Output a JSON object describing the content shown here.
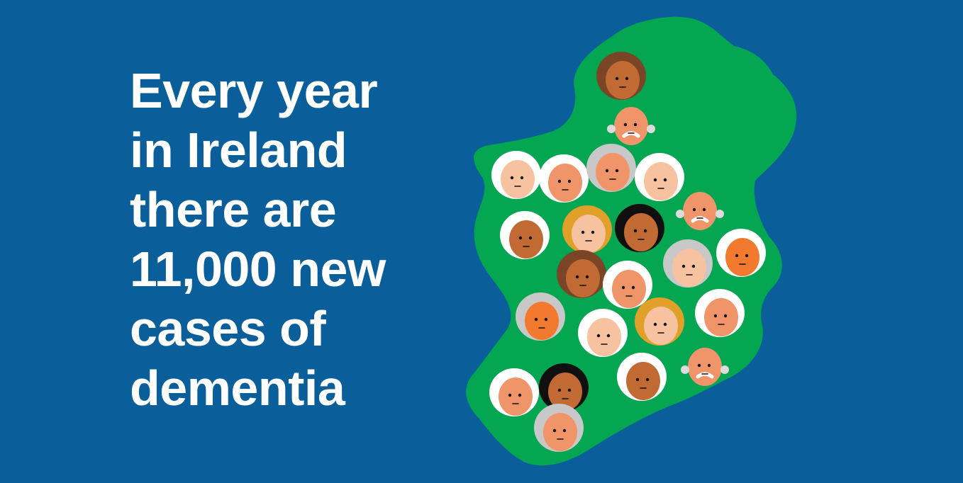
{
  "headline": {
    "lines": [
      "Every year",
      "in Ireland",
      "there are",
      "11,000 new",
      "cases of",
      "dementia"
    ]
  },
  "colors": {
    "background": "#0a5f9a",
    "map": "#04a651",
    "text": "#ffffff"
  },
  "illustration": {
    "icon": "ireland-map-icon",
    "faces": [
      {
        "hair": "brown",
        "skin": "brown"
      },
      {
        "hair": "bald",
        "skin": "peach"
      },
      {
        "hair": "white",
        "skin": "light"
      },
      {
        "hair": "white",
        "skin": "peach"
      },
      {
        "hair": "grey",
        "skin": "peach"
      },
      {
        "hair": "white",
        "skin": "light"
      },
      {
        "hair": "bald",
        "skin": "peach"
      },
      {
        "hair": "white",
        "skin": "brown"
      },
      {
        "hair": "blonde",
        "skin": "light"
      },
      {
        "hair": "black",
        "skin": "brown"
      },
      {
        "hair": "grey",
        "skin": "light"
      },
      {
        "hair": "white",
        "skin": "orange"
      },
      {
        "hair": "brown",
        "skin": "brown"
      },
      {
        "hair": "white",
        "skin": "peach"
      },
      {
        "hair": "grey",
        "skin": "orange"
      },
      {
        "hair": "white",
        "skin": "light"
      },
      {
        "hair": "blonde",
        "skin": "light"
      },
      {
        "hair": "white",
        "skin": "peach"
      },
      {
        "hair": "bald",
        "skin": "peach"
      },
      {
        "hair": "white",
        "skin": "peach"
      },
      {
        "hair": "black",
        "skin": "brown"
      },
      {
        "hair": "white",
        "skin": "brown"
      },
      {
        "hair": "grey",
        "skin": "peach"
      }
    ]
  }
}
